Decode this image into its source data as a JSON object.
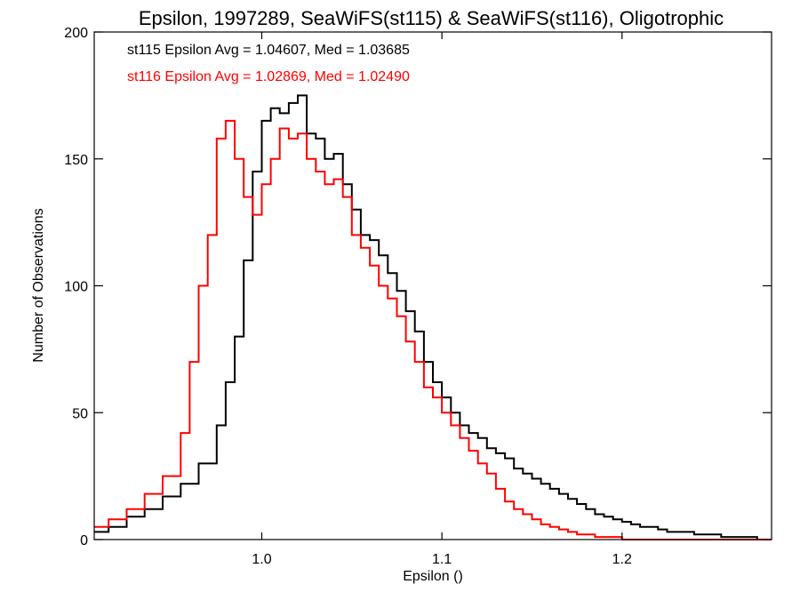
{
  "chart_data": {
    "type": "line",
    "step": true,
    "title": "Epsilon, 1997289, SeaWiFS(st115) & SeaWiFS(st116), Oligotrophic",
    "xlabel": "Epsilon ()",
    "ylabel": "Number of Observations",
    "xlim": [
      0.907,
      1.283
    ],
    "ylim": [
      0,
      200
    ],
    "xticks": [
      1.0,
      1.1,
      1.2
    ],
    "xtick_labels": [
      "1.0",
      "1.1",
      "1.2"
    ],
    "yticks": [
      0,
      50,
      100,
      150,
      200
    ],
    "ytick_labels": [
      "0",
      "50",
      "100",
      "150",
      "200"
    ],
    "grid": false,
    "legend": [
      {
        "text": "st115 Epsilon Avg = 1.04607, Med = 1.03685",
        "color": "#000000"
      },
      {
        "text": "st116 Epsilon Avg = 1.02869, Med = 1.02490",
        "color": "#ff0000"
      }
    ],
    "legend_position": "top-left",
    "series": [
      {
        "color": "#000000",
        "x": [
          0.907,
          0.915,
          0.925,
          0.935,
          0.945,
          0.955,
          0.965,
          0.975,
          0.98,
          0.985,
          0.99,
          0.995,
          1.0,
          1.005,
          1.01,
          1.015,
          1.02,
          1.025,
          1.03,
          1.035,
          1.04,
          1.045,
          1.05,
          1.055,
          1.06,
          1.065,
          1.07,
          1.075,
          1.08,
          1.085,
          1.09,
          1.095,
          1.1,
          1.105,
          1.11,
          1.115,
          1.12,
          1.125,
          1.13,
          1.135,
          1.14,
          1.145,
          1.15,
          1.155,
          1.16,
          1.165,
          1.17,
          1.175,
          1.18,
          1.185,
          1.19,
          1.195,
          1.2,
          1.205,
          1.21,
          1.215,
          1.22,
          1.225,
          1.23,
          1.235,
          1.24,
          1.245,
          1.25,
          1.255,
          1.26,
          1.265,
          1.27,
          1.275,
          1.283
        ],
        "y": [
          3,
          5,
          9,
          12,
          17,
          22,
          30,
          45,
          62,
          80,
          110,
          145,
          165,
          170,
          168,
          172,
          175,
          160,
          158,
          150,
          152,
          140,
          130,
          120,
          118,
          112,
          105,
          98,
          90,
          82,
          70,
          62,
          56,
          50,
          45,
          42,
          40,
          36,
          34,
          32,
          28,
          26,
          24,
          22,
          20,
          18,
          16,
          14,
          12,
          10,
          9,
          8,
          7,
          6,
          5,
          5,
          4,
          3,
          3,
          3,
          2,
          2,
          2,
          1,
          1,
          1,
          1,
          0,
          0
        ]
      },
      {
        "color": "#ff0000",
        "x": [
          0.907,
          0.915,
          0.925,
          0.935,
          0.945,
          0.955,
          0.96,
          0.965,
          0.97,
          0.975,
          0.98,
          0.985,
          0.99,
          0.995,
          1.0,
          1.005,
          1.01,
          1.015,
          1.02,
          1.025,
          1.03,
          1.035,
          1.04,
          1.045,
          1.05,
          1.055,
          1.06,
          1.065,
          1.07,
          1.075,
          1.08,
          1.085,
          1.09,
          1.095,
          1.1,
          1.105,
          1.11,
          1.115,
          1.12,
          1.125,
          1.13,
          1.135,
          1.14,
          1.145,
          1.15,
          1.155,
          1.16,
          1.165,
          1.17,
          1.175,
          1.18,
          1.185,
          1.19,
          1.195,
          1.2,
          1.21,
          1.22,
          1.23,
          1.24,
          1.283
        ],
        "y": [
          5,
          8,
          12,
          18,
          25,
          42,
          70,
          100,
          120,
          158,
          165,
          150,
          135,
          128,
          140,
          150,
          162,
          158,
          160,
          150,
          145,
          140,
          142,
          135,
          120,
          115,
          108,
          100,
          95,
          88,
          78,
          70,
          60,
          56,
          50,
          45,
          40,
          35,
          30,
          26,
          20,
          15,
          12,
          10,
          8,
          6,
          5,
          4,
          3,
          2,
          2,
          1,
          1,
          1,
          0,
          0,
          0,
          0,
          0,
          0
        ]
      }
    ]
  }
}
